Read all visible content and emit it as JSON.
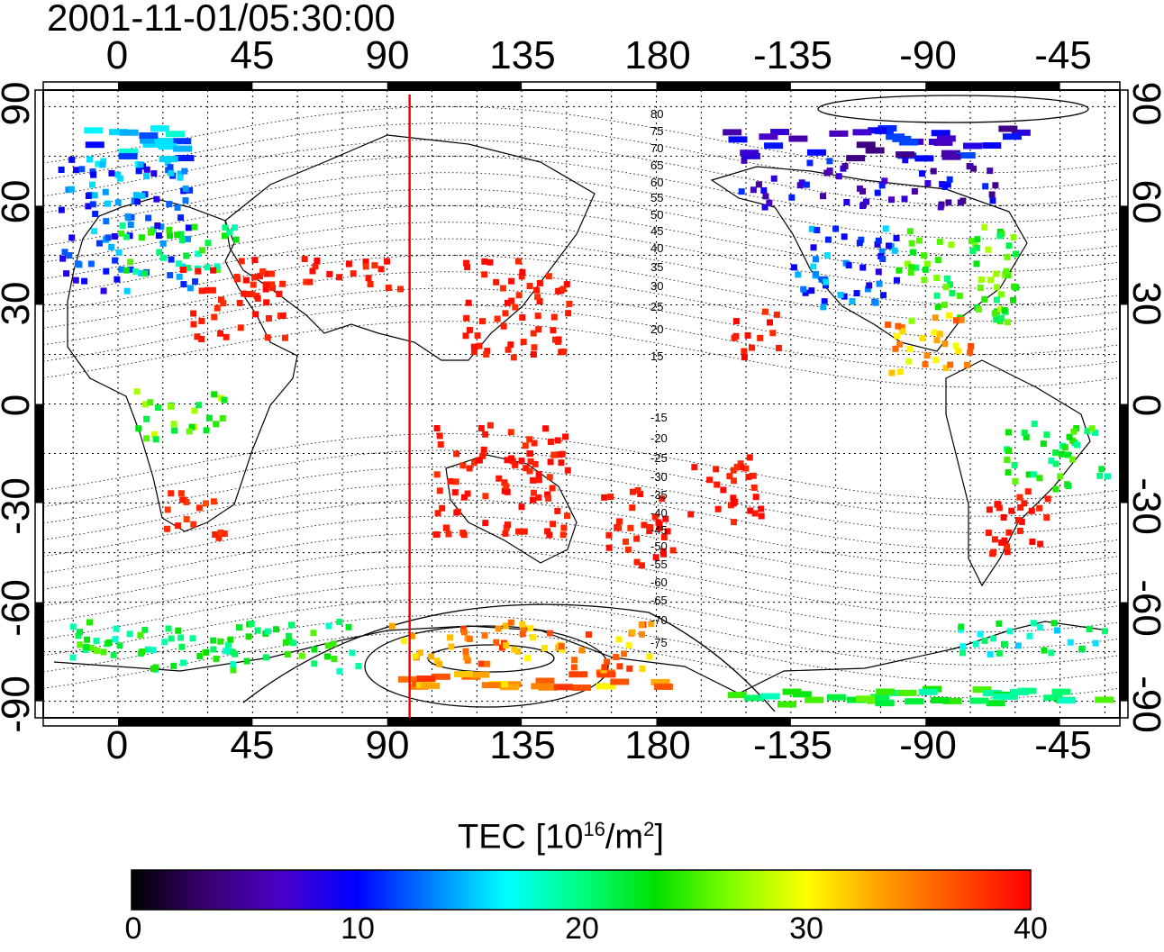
{
  "title": "2001-11-01/05:30:00",
  "map": {
    "lon_ticks_top": [
      "0",
      "45",
      "90",
      "135",
      "180",
      "-135",
      "-90",
      "-45"
    ],
    "lon_ticks_bottom": [
      "0",
      "45",
      "90",
      "135",
      "180",
      "-135",
      "-90",
      "-45"
    ],
    "lat_ticks_left": [
      "90",
      "60",
      "30",
      "0",
      "-30",
      "-60",
      "-90"
    ],
    "lat_ticks_right": [
      "90",
      "60",
      "30",
      "0",
      "-30",
      "-60",
      "-90"
    ],
    "lon_range": [
      -25,
      335
    ],
    "lat_range": [
      -95,
      95
    ],
    "grid": "dotted, every 15 degrees",
    "subsolar_longitude_line": 97.5,
    "subsolar_line_color": "#ff0000",
    "magnetic_latitude_labels": [
      "80",
      "75",
      "70",
      "65",
      "60",
      "55",
      "50",
      "45",
      "40",
      "35",
      "30",
      "25",
      "20",
      "15",
      "-15",
      "-20",
      "-25",
      "-30",
      "-35",
      "-40",
      "-45",
      "-50",
      "-55",
      "-60",
      "-65",
      "-70",
      "-75"
    ]
  },
  "colorbar": {
    "title_prefix": "TEC  [10",
    "title_exp1": "16",
    "title_mid": "/m",
    "title_exp2": "2",
    "title_suffix": "]",
    "ticks": [
      "0",
      "10",
      "20",
      "30",
      "40"
    ],
    "range": [
      0,
      40
    ],
    "colors": [
      "#000000",
      "#3a0070",
      "#4b00c8",
      "#0000ff",
      "#0080ff",
      "#00ffff",
      "#00ff80",
      "#00e000",
      "#80ff00",
      "#ffff00",
      "#ffa000",
      "#ff5000",
      "#ff0000"
    ]
  },
  "chart_data": {
    "type": "heatmap",
    "quantity": "TEC",
    "unit": "10^16/m^2",
    "clusters": [
      {
        "lon": [
          -20,
          25
        ],
        "lat": [
          35,
          75
        ],
        "tec": 12
      },
      {
        "lon": [
          -15,
          20
        ],
        "lat": [
          70,
          85
        ],
        "tec": 14
      },
      {
        "lon": [
          0,
          40
        ],
        "lat": [
          40,
          55
        ],
        "tec": 22
      },
      {
        "lon": [
          20,
          55
        ],
        "lat": [
          20,
          45
        ],
        "tec": 39
      },
      {
        "lon": [
          60,
          95
        ],
        "lat": [
          35,
          45
        ],
        "tec": 39
      },
      {
        "lon": [
          115,
          150
        ],
        "lat": [
          15,
          45
        ],
        "tec": 39
      },
      {
        "lon": [
          105,
          150
        ],
        "lat": [
          -40,
          -5
        ],
        "tec": 39
      },
      {
        "lon": [
          160,
          185
        ],
        "lat": [
          -48,
          -25
        ],
        "tec": 39
      },
      {
        "lon": [
          190,
          215
        ],
        "lat": [
          -35,
          -15
        ],
        "tec": 39
      },
      {
        "lon": [
          205,
          220
        ],
        "lat": [
          15,
          30
        ],
        "tec": 39
      },
      {
        "lon": [
          15,
          35
        ],
        "lat": [
          -40,
          -25
        ],
        "tec": 38
      },
      {
        "lon": [
          5,
          35
        ],
        "lat": [
          -10,
          5
        ],
        "tec": 25
      },
      {
        "lon": [
          225,
          260
        ],
        "lat": [
          30,
          55
        ],
        "tec": 12
      },
      {
        "lon": [
          260,
          300
        ],
        "lat": [
          25,
          55
        ],
        "tec": 24
      },
      {
        "lon": [
          200,
          300
        ],
        "lat": [
          60,
          85
        ],
        "tec": 8
      },
      {
        "lon": [
          255,
          285
        ],
        "lat": [
          10,
          28
        ],
        "tec": 33
      },
      {
        "lon": [
          290,
          310
        ],
        "lat": [
          -45,
          -20
        ],
        "tec": 39
      },
      {
        "lon": [
          295,
          330
        ],
        "lat": [
          -25,
          -5
        ],
        "tec": 22
      },
      {
        "lon": [
          -20,
          80
        ],
        "lat": [
          -80,
          -65
        ],
        "tec": 22
      },
      {
        "lon": [
          90,
          180
        ],
        "lat": [
          -85,
          -65
        ],
        "tec": 34
      },
      {
        "lon": [
          280,
          330
        ],
        "lat": [
          -75,
          -65
        ],
        "tec": 19
      },
      {
        "lon": [
          200,
          330
        ],
        "lat": [
          -90,
          -85
        ],
        "tec": 22
      }
    ]
  }
}
